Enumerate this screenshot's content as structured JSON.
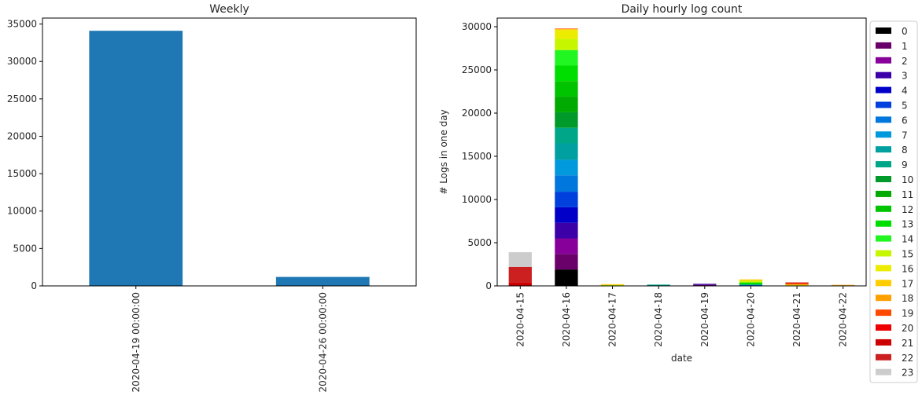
{
  "chart_data": [
    {
      "type": "bar",
      "title": "Weekly",
      "xlabel": "",
      "ylabel": "",
      "categories": [
        "2020-04-19 00:00:00",
        "2020-04-26 00:00:00"
      ],
      "values": [
        34100,
        1200
      ],
      "ylim": [
        0,
        35800
      ],
      "yticks": [
        0,
        5000,
        10000,
        15000,
        20000,
        25000,
        30000,
        35000
      ],
      "bar_color": "#1f77b4",
      "grid": false
    },
    {
      "type": "bar",
      "stacked": true,
      "title": "Daily hourly log count",
      "xlabel": "date",
      "ylabel": "# Logs in one day",
      "categories": [
        "2020-04-15",
        "2020-04-16",
        "2020-04-17",
        "2020-04-18",
        "2020-04-19",
        "2020-04-20",
        "2020-04-21",
        "2020-04-22"
      ],
      "ylim": [
        0,
        31000
      ],
      "yticks": [
        0,
        5000,
        10000,
        15000,
        20000,
        25000,
        30000
      ],
      "legend_position": "outside-right",
      "grid": false,
      "series": [
        {
          "name": "0",
          "color": "#000000",
          "values": [
            0,
            1900,
            0,
            0,
            0,
            0,
            0,
            0
          ]
        },
        {
          "name": "1",
          "color": "#6a006a",
          "values": [
            0,
            1800,
            0,
            0,
            0,
            0,
            0,
            0
          ]
        },
        {
          "name": "2",
          "color": "#88009a",
          "values": [
            0,
            1800,
            0,
            0,
            0,
            0,
            0,
            0
          ]
        },
        {
          "name": "3",
          "color": "#3c00a8",
          "values": [
            0,
            1800,
            0,
            0,
            0,
            0,
            0,
            0
          ]
        },
        {
          "name": "4",
          "color": "#0000c8",
          "values": [
            0,
            1800,
            0,
            0,
            0,
            0,
            0,
            0
          ]
        },
        {
          "name": "5",
          "color": "#0040dd",
          "values": [
            0,
            1800,
            0,
            0,
            0,
            0,
            0,
            0
          ]
        },
        {
          "name": "6",
          "color": "#0077dd",
          "values": [
            0,
            1900,
            0,
            0,
            0,
            0,
            0,
            0
          ]
        },
        {
          "name": "7",
          "color": "#0099dd",
          "values": [
            0,
            1800,
            0,
            0,
            0,
            0,
            0,
            0
          ]
        },
        {
          "name": "8",
          "color": "#00a0a0",
          "values": [
            0,
            1900,
            0,
            0,
            0,
            0,
            0,
            0
          ]
        },
        {
          "name": "9",
          "color": "#00a688",
          "values": [
            0,
            1800,
            0,
            0,
            0,
            0,
            0,
            0
          ]
        },
        {
          "name": "10",
          "color": "#009a2a",
          "values": [
            0,
            1800,
            0,
            0,
            0,
            0,
            0,
            0
          ]
        },
        {
          "name": "11",
          "color": "#00aa00",
          "values": [
            0,
            1800,
            0,
            0,
            0,
            0,
            0,
            0
          ]
        },
        {
          "name": "12",
          "color": "#00c400",
          "values": [
            0,
            1800,
            0,
            0,
            0,
            0,
            0,
            0
          ]
        },
        {
          "name": "13",
          "color": "#00de00",
          "values": [
            0,
            1800,
            0,
            0,
            0,
            0,
            0,
            0
          ]
        },
        {
          "name": "14",
          "color": "#22f622",
          "values": [
            0,
            1800,
            0,
            0,
            0,
            0,
            0,
            0
          ]
        },
        {
          "name": "15",
          "color": "#c6f600",
          "values": [
            0,
            1300,
            0,
            0,
            0,
            0,
            0,
            0
          ]
        },
        {
          "name": "16",
          "color": "#ecec00",
          "values": [
            0,
            1000,
            0,
            0,
            0,
            0,
            0,
            0
          ]
        },
        {
          "name": "17",
          "color": "#ffcc00",
          "values": [
            0,
            100,
            0,
            0,
            0,
            0,
            0,
            0
          ]
        },
        {
          "name": "18",
          "color": "#ffa000",
          "values": [
            0,
            50,
            0,
            0,
            0,
            0,
            0,
            0
          ]
        },
        {
          "name": "19",
          "color": "#ff4800",
          "values": [
            0,
            50,
            0,
            0,
            0,
            0,
            0,
            0
          ]
        },
        {
          "name": "20",
          "color": "#ee0000",
          "values": [
            0,
            0,
            0,
            0,
            0,
            0,
            0,
            0
          ]
        },
        {
          "name": "21",
          "color": "#cc0000",
          "values": [
            400,
            0,
            0,
            0,
            0,
            0,
            0,
            0
          ]
        },
        {
          "name": "22",
          "color": "#cc2020",
          "values": [
            1800,
            0,
            0,
            0,
            0,
            0,
            0,
            0
          ]
        },
        {
          "name": "23",
          "color": "#cccccc",
          "values": [
            1700,
            0,
            0,
            0,
            0,
            0,
            0,
            0
          ]
        }
      ],
      "small_bars": [
        {
          "category": "2020-04-17",
          "segments": [
            {
              "name": "15",
              "value": 100
            },
            {
              "name": "17",
              "value": 100
            }
          ]
        },
        {
          "category": "2020-04-18",
          "segments": [
            {
              "name": "9",
              "value": 150
            }
          ]
        },
        {
          "category": "2020-04-19",
          "segments": [
            {
              "name": "1",
              "value": 120
            },
            {
              "name": "3",
              "value": 120
            }
          ]
        },
        {
          "category": "2020-04-20",
          "segments": [
            {
              "name": "6",
              "value": 150
            },
            {
              "name": "13",
              "value": 250
            },
            {
              "name": "15",
              "value": 200
            },
            {
              "name": "17",
              "value": 150
            }
          ]
        },
        {
          "category": "2020-04-21",
          "segments": [
            {
              "name": "16",
              "value": 150
            },
            {
              "name": "19",
              "value": 150
            },
            {
              "name": "21",
              "value": 100
            }
          ]
        },
        {
          "category": "2020-04-22",
          "segments": [
            {
              "name": "17",
              "value": 60
            },
            {
              "name": "18",
              "value": 60
            }
          ]
        }
      ]
    }
  ]
}
